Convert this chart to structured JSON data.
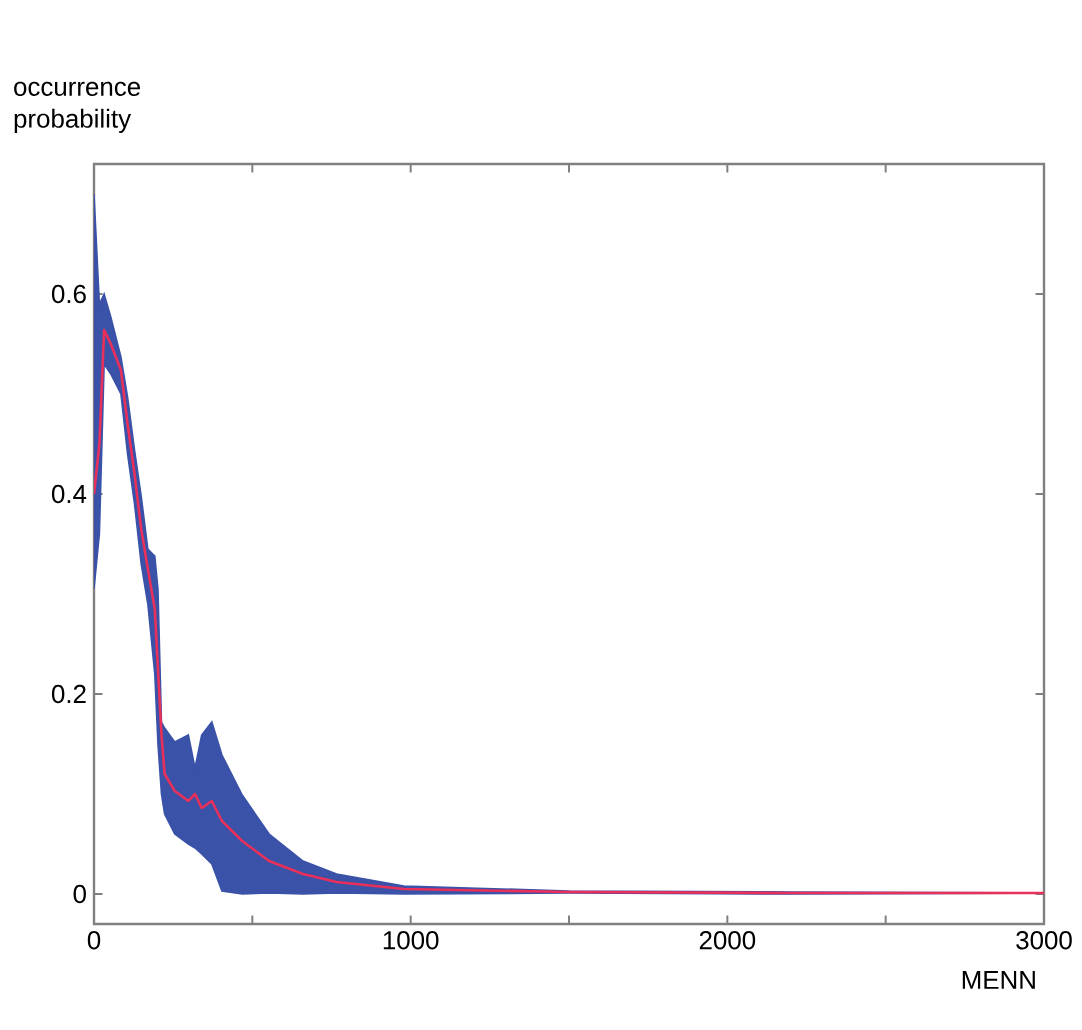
{
  "chart_data": {
    "type": "line",
    "xlabel": "MENN",
    "ylabel": "occurrence probability",
    "xlim": [
      0,
      3000
    ],
    "ylim": [
      -0.03,
      0.73
    ],
    "xticks": [
      0,
      {
        "value": 500,
        "label": null
      },
      1000,
      {
        "value": 1500,
        "label": null
      },
      2000,
      {
        "value": 2500,
        "label": null
      },
      3000
    ],
    "yticks": [
      0,
      0.2,
      0.4,
      0.6
    ],
    "grid": false,
    "marker": "none",
    "line_style": "solid",
    "series": [
      {
        "color": "#e8305a",
        "x": [
          0,
          17,
          32,
          53,
          85,
          106,
          128,
          149,
          170,
          192,
          202,
          213,
          223,
          255,
          298,
          319,
          340,
          372,
          404,
          468,
          553,
          660,
          766,
          979,
          1500,
          2200,
          3000
        ],
        "values": [
          0.4,
          0.45,
          0.564,
          0.55,
          0.524,
          0.47,
          0.42,
          0.365,
          0.325,
          0.285,
          0.225,
          0.16,
          0.12,
          0.103,
          0.093,
          0.1,
          0.086,
          0.093,
          0.073,
          0.053,
          0.033,
          0.02,
          0.012,
          0.005,
          0.002,
          0.001,
          0.001
        ],
        "lower": [
          0.305,
          0.36,
          0.53,
          0.52,
          0.5,
          0.44,
          0.39,
          0.33,
          0.29,
          0.22,
          0.15,
          0.1,
          0.08,
          0.06,
          0.05,
          0.046,
          0.04,
          0.03,
          0.003,
          0.0,
          0.001,
          0.0,
          0.001,
          0.0,
          0.001,
          0.0,
          0.001
        ],
        "upper": [
          0.7,
          0.59,
          0.6,
          0.577,
          0.537,
          0.497,
          0.444,
          0.398,
          0.345,
          0.338,
          0.305,
          0.172,
          0.166,
          0.152,
          0.159,
          0.126,
          0.159,
          0.172,
          0.139,
          0.099,
          0.06,
          0.033,
          0.02,
          0.008,
          0.003,
          0.002,
          0.001
        ]
      }
    ]
  }
}
